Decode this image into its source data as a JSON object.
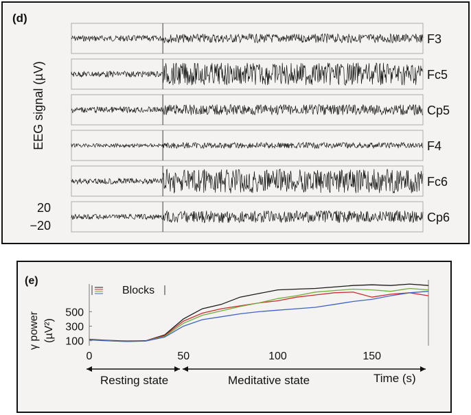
{
  "panel_d": {
    "label": "(d)",
    "ylabel": "EEG signal (µV)",
    "scale_top": "20",
    "scale_bottom": "−20"
  },
  "panel_e": {
    "label": "(e)",
    "legend_label": "Blocks",
    "ylabel_line1": "γ power",
    "ylabel_line2": "(µV²)",
    "resting_label": "Resting state",
    "meditative_label": "Meditative state",
    "time_label": "Time (s)"
  },
  "chart_data": [
    {
      "type": "line",
      "panel": "(d)",
      "ylabel": "EEG signal (µV)",
      "scale_bar_uV": [
        20,
        -20
      ],
      "channels": [
        {
          "name": "F3",
          "rest_amplitude_uV": 8,
          "meditation_amplitude_uV": 12
        },
        {
          "name": "Fc5",
          "rest_amplitude_uV": 8,
          "meditation_amplitude_uV": 30
        },
        {
          "name": "Cp5",
          "rest_amplitude_uV": 8,
          "meditation_amplitude_uV": 14
        },
        {
          "name": "F4",
          "rest_amplitude_uV": 5,
          "meditation_amplitude_uV": 8
        },
        {
          "name": "Fc6",
          "rest_amplitude_uV": 8,
          "meditation_amplitude_uV": 32
        },
        {
          "name": "Cp6",
          "rest_amplitude_uV": 7,
          "meditation_amplitude_uV": 16
        }
      ],
      "transition_fraction": 0.26
    },
    {
      "type": "line",
      "panel": "(e)",
      "xlabel": "Time (s)",
      "ylabel": "γ power (µV²)",
      "xlim": [
        0,
        180
      ],
      "ylim": [
        50,
        900
      ],
      "xticks": [
        0,
        50,
        100,
        150
      ],
      "yticks": [
        100,
        300,
        500
      ],
      "legend": "top-left",
      "series": [
        {
          "color": "#1a1a1a",
          "points": [
            [
              0,
              120
            ],
            [
              10,
              105
            ],
            [
              20,
              95
            ],
            [
              30,
              100
            ],
            [
              40,
              180
            ],
            [
              50,
              400
            ],
            [
              60,
              540
            ],
            [
              70,
              600
            ],
            [
              80,
              700
            ],
            [
              90,
              750
            ],
            [
              100,
              800
            ],
            [
              110,
              810
            ],
            [
              120,
              820
            ],
            [
              130,
              840
            ],
            [
              140,
              860
            ],
            [
              150,
              870
            ],
            [
              160,
              860
            ],
            [
              170,
              880
            ],
            [
              180,
              860
            ]
          ]
        },
        {
          "color": "#cc2b2b",
          "points": [
            [
              0,
              115
            ],
            [
              10,
              102
            ],
            [
              20,
              92
            ],
            [
              30,
              98
            ],
            [
              40,
              170
            ],
            [
              50,
              370
            ],
            [
              60,
              480
            ],
            [
              70,
              540
            ],
            [
              80,
              580
            ],
            [
              90,
              620
            ],
            [
              100,
              650
            ],
            [
              110,
              700
            ],
            [
              120,
              730
            ],
            [
              130,
              760
            ],
            [
              140,
              770
            ],
            [
              150,
              700
            ],
            [
              160,
              740
            ],
            [
              170,
              760
            ],
            [
              180,
              720
            ]
          ]
        },
        {
          "color": "#6fae3a",
          "points": [
            [
              0,
              112
            ],
            [
              10,
              100
            ],
            [
              20,
              90
            ],
            [
              30,
              96
            ],
            [
              40,
              160
            ],
            [
              50,
              340
            ],
            [
              60,
              450
            ],
            [
              70,
              510
            ],
            [
              80,
              570
            ],
            [
              90,
              620
            ],
            [
              100,
              680
            ],
            [
              110,
              720
            ],
            [
              120,
              770
            ],
            [
              130,
              790
            ],
            [
              140,
              810
            ],
            [
              150,
              800
            ],
            [
              160,
              780
            ],
            [
              170,
              820
            ],
            [
              180,
              800
            ]
          ]
        },
        {
          "color": "#3d63c4",
          "points": [
            [
              0,
              110
            ],
            [
              10,
              98
            ],
            [
              20,
              90
            ],
            [
              30,
              95
            ],
            [
              40,
              150
            ],
            [
              50,
              300
            ],
            [
              60,
              390
            ],
            [
              70,
              430
            ],
            [
              80,
              470
            ],
            [
              90,
              500
            ],
            [
              100,
              520
            ],
            [
              110,
              540
            ],
            [
              120,
              560
            ],
            [
              130,
              600
            ],
            [
              140,
              640
            ],
            [
              150,
              670
            ],
            [
              160,
              720
            ],
            [
              170,
              760
            ],
            [
              180,
              780
            ]
          ]
        }
      ]
    }
  ]
}
